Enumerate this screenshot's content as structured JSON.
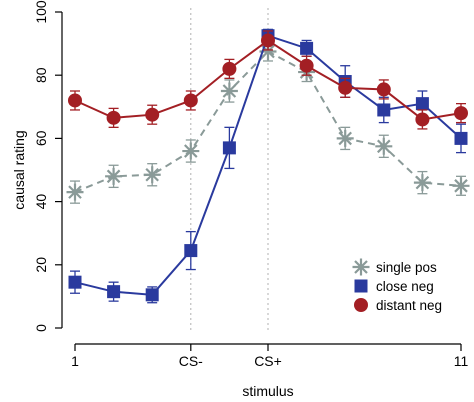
{
  "chart_data": {
    "type": "line",
    "title": "",
    "xlabel": "stimulus",
    "ylabel": "causal rating",
    "x": [
      1,
      2,
      3,
      4,
      5,
      6,
      7,
      8,
      9,
      10,
      11
    ],
    "xlim": [
      0.9,
      11.1
    ],
    "ylim": [
      0,
      100
    ],
    "x_ticks": [
      {
        "x": 1,
        "label": "1"
      },
      {
        "x": 4,
        "label": "CS-"
      },
      {
        "x": 6,
        "label": "CS+"
      },
      {
        "x": 11,
        "label": "11"
      }
    ],
    "y_ticks": [
      0,
      20,
      40,
      60,
      80,
      100
    ],
    "reference_lines": [
      4,
      6
    ],
    "legend_position": "bottom-right",
    "series": [
      {
        "name": "single pos",
        "color": "#8a9a98",
        "marker": "asterisk",
        "line_style": "dashed",
        "values": [
          43,
          48,
          48.5,
          56,
          75,
          87.5,
          81,
          60,
          57.5,
          46,
          45
        ],
        "errors": [
          3.5,
          3.5,
          3.5,
          3.5,
          3.5,
          3,
          3,
          3.5,
          3.5,
          3.5,
          3
        ]
      },
      {
        "name": "close neg",
        "color": "#2a3a9e",
        "marker": "square",
        "line_style": "solid",
        "values": [
          14.5,
          11.5,
          10.5,
          24.5,
          57,
          92.5,
          88.5,
          78,
          69,
          71,
          60
        ],
        "errors": [
          3.5,
          3,
          2.5,
          6,
          6.5,
          2,
          2.5,
          5,
          4,
          4,
          4.5
        ]
      },
      {
        "name": "distant neg",
        "color": "#a31f24",
        "marker": "circle",
        "line_style": "solid",
        "values": [
          72,
          66.5,
          67.5,
          72,
          82,
          91,
          83,
          76,
          75.5,
          66,
          68
        ],
        "errors": [
          3,
          3,
          3,
          3,
          3,
          3,
          3,
          3,
          3,
          3,
          3
        ]
      }
    ]
  }
}
